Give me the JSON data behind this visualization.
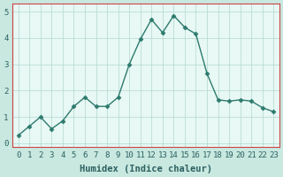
{
  "x": [
    0,
    1,
    2,
    3,
    4,
    5,
    6,
    7,
    8,
    9,
    10,
    11,
    12,
    13,
    14,
    15,
    16,
    17,
    18,
    19,
    20,
    21,
    22,
    23
  ],
  "y": [
    0.3,
    0.65,
    1.0,
    0.55,
    0.85,
    1.4,
    1.75,
    1.4,
    1.4,
    1.75,
    3.0,
    3.95,
    4.7,
    4.2,
    4.85,
    4.4,
    4.15,
    2.65,
    1.65,
    1.6,
    1.65,
    1.6,
    1.35,
    1.2
  ],
  "line_color": "#2d7a6e",
  "marker": "D",
  "markersize": 2.5,
  "linewidth": 1.0,
  "fig_bg_color": "#c8e8e0",
  "plot_bg_color": "#e8f8f4",
  "grid_color": "#b0d8d0",
  "spine_color": "#cc4444",
  "xlabel": "Humidex (Indice chaleur)",
  "ylim": [
    -0.15,
    5.3
  ],
  "xlim": [
    -0.5,
    23.5
  ],
  "yticks": [
    0,
    1,
    2,
    3,
    4,
    5
  ],
  "xticks": [
    0,
    1,
    2,
    3,
    4,
    5,
    6,
    7,
    8,
    9,
    10,
    11,
    12,
    13,
    14,
    15,
    16,
    17,
    18,
    19,
    20,
    21,
    22,
    23
  ],
  "xlabel_fontsize": 7.5,
  "tick_fontsize": 6.5,
  "tick_color": "#2d6060",
  "xlabel_color": "#2d6060"
}
